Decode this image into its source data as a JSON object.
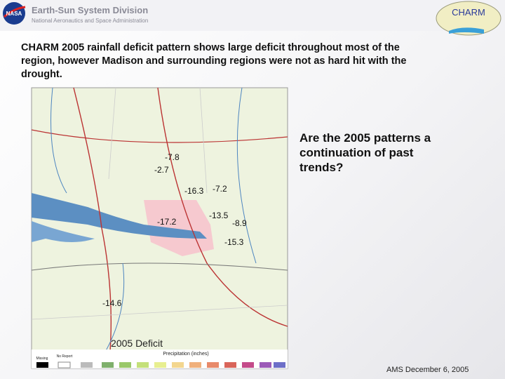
{
  "header": {
    "title": "Earth-Sun System Division",
    "subtitle": "National Aeronautics and Space Administration",
    "logo": "NASA",
    "badge": "CHARM"
  },
  "body_text": "CHARM 2005 rainfall deficit pattern shows large deficit throughout most of the region, however Madison and surrounding regions were not as hard hit with the drought.",
  "map": {
    "title": "2005 Deficit",
    "legend_title": "Precipitation (inches)",
    "legend_labels": [
      "Missing",
      "No Report"
    ],
    "labels": [
      "-7.8",
      "-2.7",
      "-16.3",
      "-7.2",
      "-17.2",
      "-13.5",
      "-8.9",
      "-15.3",
      "-14.6"
    ]
  },
  "question": "Are the 2005 patterns a continuation of past trends?",
  "footer": "AMS December 6, 2005"
}
